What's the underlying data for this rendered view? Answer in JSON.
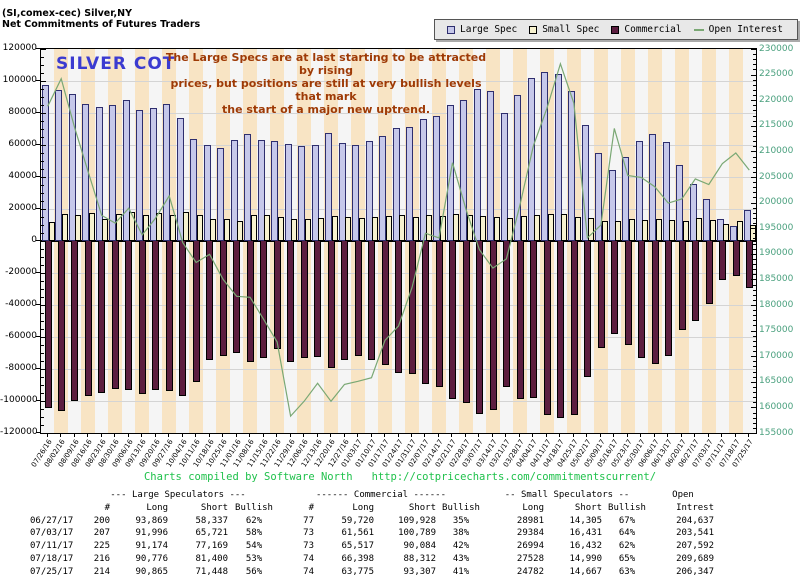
{
  "header": {
    "instrument": "(SI,comex-cec) Silver,NY",
    "subtitle": "Net Commitments of Futures Traders"
  },
  "legend": {
    "items": [
      {
        "label": "Large Spec",
        "swatch": "large-spec-square"
      },
      {
        "label": "Small Spec",
        "swatch": "small-spec-square"
      },
      {
        "label": "Commercial",
        "swatch": "commercial-square"
      },
      {
        "label": "Open Interest",
        "swatch": "green-dash"
      }
    ]
  },
  "chart_label": "SILVER COT",
  "annotation_lines": [
    "The Large Specs are at last starting to be attracted by rising",
    "prices, but positions are still at very bullish levels that mark",
    "the start of a major new uptrend."
  ],
  "footer": {
    "credit": "Charts compiled by Software North",
    "url": "http://cotpricecharts.com/commitmentscurrent/"
  },
  "colors": {
    "large_spec_fill": "#c6c8ea",
    "large_spec_border": "#2e2e6e",
    "small_spec_fill": "#f7f2cf",
    "small_spec_border": "#000000",
    "commercial_fill": "#5c1e40",
    "commercial_border": "#000000",
    "open_interest_line": "#7aa874",
    "stripe_peach": "#f8e4c4",
    "stripe_plain": "#f5f5f5",
    "silver_cot_label": "#3b3bd1",
    "annotation_text": "#9e3a06",
    "footer_text": "#1fc14b",
    "right_axis_text": "#4aa07e"
  },
  "chart_data": {
    "type": "bar",
    "title": "SILVER COT - Net Commitments of Futures Traders",
    "x": [
      "07/26/16",
      "08/02/16",
      "08/09/16",
      "08/16/16",
      "08/23/16",
      "08/30/16",
      "09/06/16",
      "09/13/16",
      "09/20/16",
      "09/27/16",
      "10/04/16",
      "10/11/16",
      "10/18/16",
      "10/25/16",
      "11/01/16",
      "11/08/16",
      "11/15/16",
      "11/22/16",
      "11/29/16",
      "12/06/16",
      "12/13/16",
      "12/20/16",
      "12/27/16",
      "01/03/17",
      "01/10/17",
      "01/17/17",
      "01/24/17",
      "01/31/17",
      "02/07/17",
      "02/14/17",
      "02/21/17",
      "02/28/17",
      "03/07/17",
      "03/14/17",
      "03/21/17",
      "03/28/17",
      "04/04/17",
      "04/11/17",
      "04/18/17",
      "04/25/17",
      "05/02/17",
      "05/09/17",
      "05/16/17",
      "05/23/17",
      "05/30/17",
      "06/06/17",
      "06/13/17",
      "06/20/17",
      "06/27/17",
      "07/03/17",
      "07/11/17",
      "07/18/17",
      "07/25/17"
    ],
    "series": [
      {
        "name": "Large Spec",
        "type": "bar",
        "axis": "left",
        "values": [
          97400,
          94200,
          91700,
          85900,
          83800,
          84800,
          88000,
          81700,
          83200,
          85500,
          77100,
          64000,
          59800,
          58100,
          62900,
          66700,
          63300,
          62300,
          60800,
          59400,
          60200,
          67500,
          61400,
          59800,
          62300,
          65600,
          70400,
          71300,
          76500,
          78400,
          84800,
          88400,
          95300,
          93600,
          80300,
          91100,
          102000,
          105800,
          104100,
          93600,
          72300,
          55000,
          44500,
          52500,
          62300,
          66700,
          61900,
          47600,
          35532,
          26275,
          14005,
          9376,
          19417
        ]
      },
      {
        "name": "Small Spec",
        "type": "bar",
        "axis": "left",
        "values": [
          12100,
          16900,
          16300,
          17400,
          13800,
          16900,
          18000,
          16500,
          17400,
          16500,
          18000,
          16500,
          13800,
          13800,
          12700,
          16000,
          16300,
          15200,
          14000,
          13500,
          14500,
          15500,
          14800,
          14200,
          15000,
          15500,
          16000,
          15200,
          16500,
          15800,
          17000,
          16200,
          15500,
          14800,
          14200,
          15800,
          16500,
          17000,
          16800,
          15200,
          14500,
          12800,
          12200,
          13500,
          13000,
          13800,
          13200,
          12800,
          14676,
          12953,
          10562,
          12538,
          10115
        ]
      },
      {
        "name": "Commercial",
        "type": "bar",
        "axis": "left",
        "values": [
          -104300,
          -106000,
          -99700,
          -97000,
          -94900,
          -92200,
          -93200,
          -95900,
          -93200,
          -93800,
          -97000,
          -88200,
          -74400,
          -71900,
          -70200,
          -75700,
          -73400,
          -67700,
          -75700,
          -72900,
          -72500,
          -79100,
          -74300,
          -72000,
          -74500,
          -77800,
          -82500,
          -83000,
          -89500,
          -91000,
          -98500,
          -101000,
          -108000,
          -105500,
          -91500,
          -99000,
          -98400,
          -108900,
          -110800,
          -108500,
          -85100,
          -67000,
          -58000,
          -65000,
          -72900,
          -77100,
          -72000,
          -55600,
          -50208,
          -39228,
          -24567,
          -21914,
          -29532
        ]
      },
      {
        "name": "Open Interest",
        "type": "line",
        "axis": "right",
        "values": [
          218800,
          224200,
          214600,
          206000,
          197500,
          196000,
          198900,
          193700,
          197000,
          201300,
          192200,
          188300,
          189900,
          185000,
          181700,
          181500,
          177200,
          172800,
          158300,
          161200,
          164700,
          161200,
          164500,
          165100,
          165800,
          173100,
          175900,
          183400,
          194000,
          193100,
          207800,
          198700,
          190800,
          187200,
          189000,
          199500,
          211100,
          218400,
          227100,
          219400,
          193100,
          195600,
          214500,
          205300,
          204900,
          203100,
          199900,
          200700,
          204637,
          203541,
          207592,
          209689,
          206347
        ]
      }
    ],
    "left_axis": {
      "min": -120000,
      "max": 120000,
      "step": 20000
    },
    "right_axis": {
      "min": 155000,
      "max": 230000,
      "step": 5000
    },
    "grid": true,
    "legend_position": "top-right"
  },
  "table": {
    "group_headers": [
      "--- Large Speculators ---",
      "------ Commercial ------",
      "-- Small Speculators --",
      "Open"
    ],
    "col_headers": [
      "",
      "#",
      "Long",
      "Short",
      "Bullish",
      "#",
      "Long",
      "Short",
      "Bullish",
      "Long",
      "Short",
      "Bullish",
      "Intrest"
    ],
    "rows": [
      [
        "06/27/17",
        "200",
        "93,869",
        "58,337",
        "62%",
        "77",
        "59,720",
        "109,928",
        "35%",
        "28981",
        "14,305",
        "67%",
        "204,637"
      ],
      [
        "07/03/17",
        "207",
        "91,996",
        "65,721",
        "58%",
        "73",
        "61,561",
        "100,789",
        "38%",
        "29384",
        "16,431",
        "64%",
        "203,541"
      ],
      [
        "07/11/17",
        "225",
        "91,174",
        "77,169",
        "54%",
        "73",
        "65,517",
        "90,084",
        "42%",
        "26994",
        "16,432",
        "62%",
        "207,592"
      ],
      [
        "07/18/17",
        "216",
        "90,776",
        "81,400",
        "53%",
        "74",
        "66,398",
        "88,312",
        "43%",
        "27528",
        "14,990",
        "65%",
        "209,689"
      ],
      [
        "07/25/17",
        "214",
        "90,865",
        "71,448",
        "56%",
        "74",
        "63,775",
        "93,307",
        "41%",
        "24782",
        "14,667",
        "63%",
        "206,347"
      ]
    ]
  }
}
